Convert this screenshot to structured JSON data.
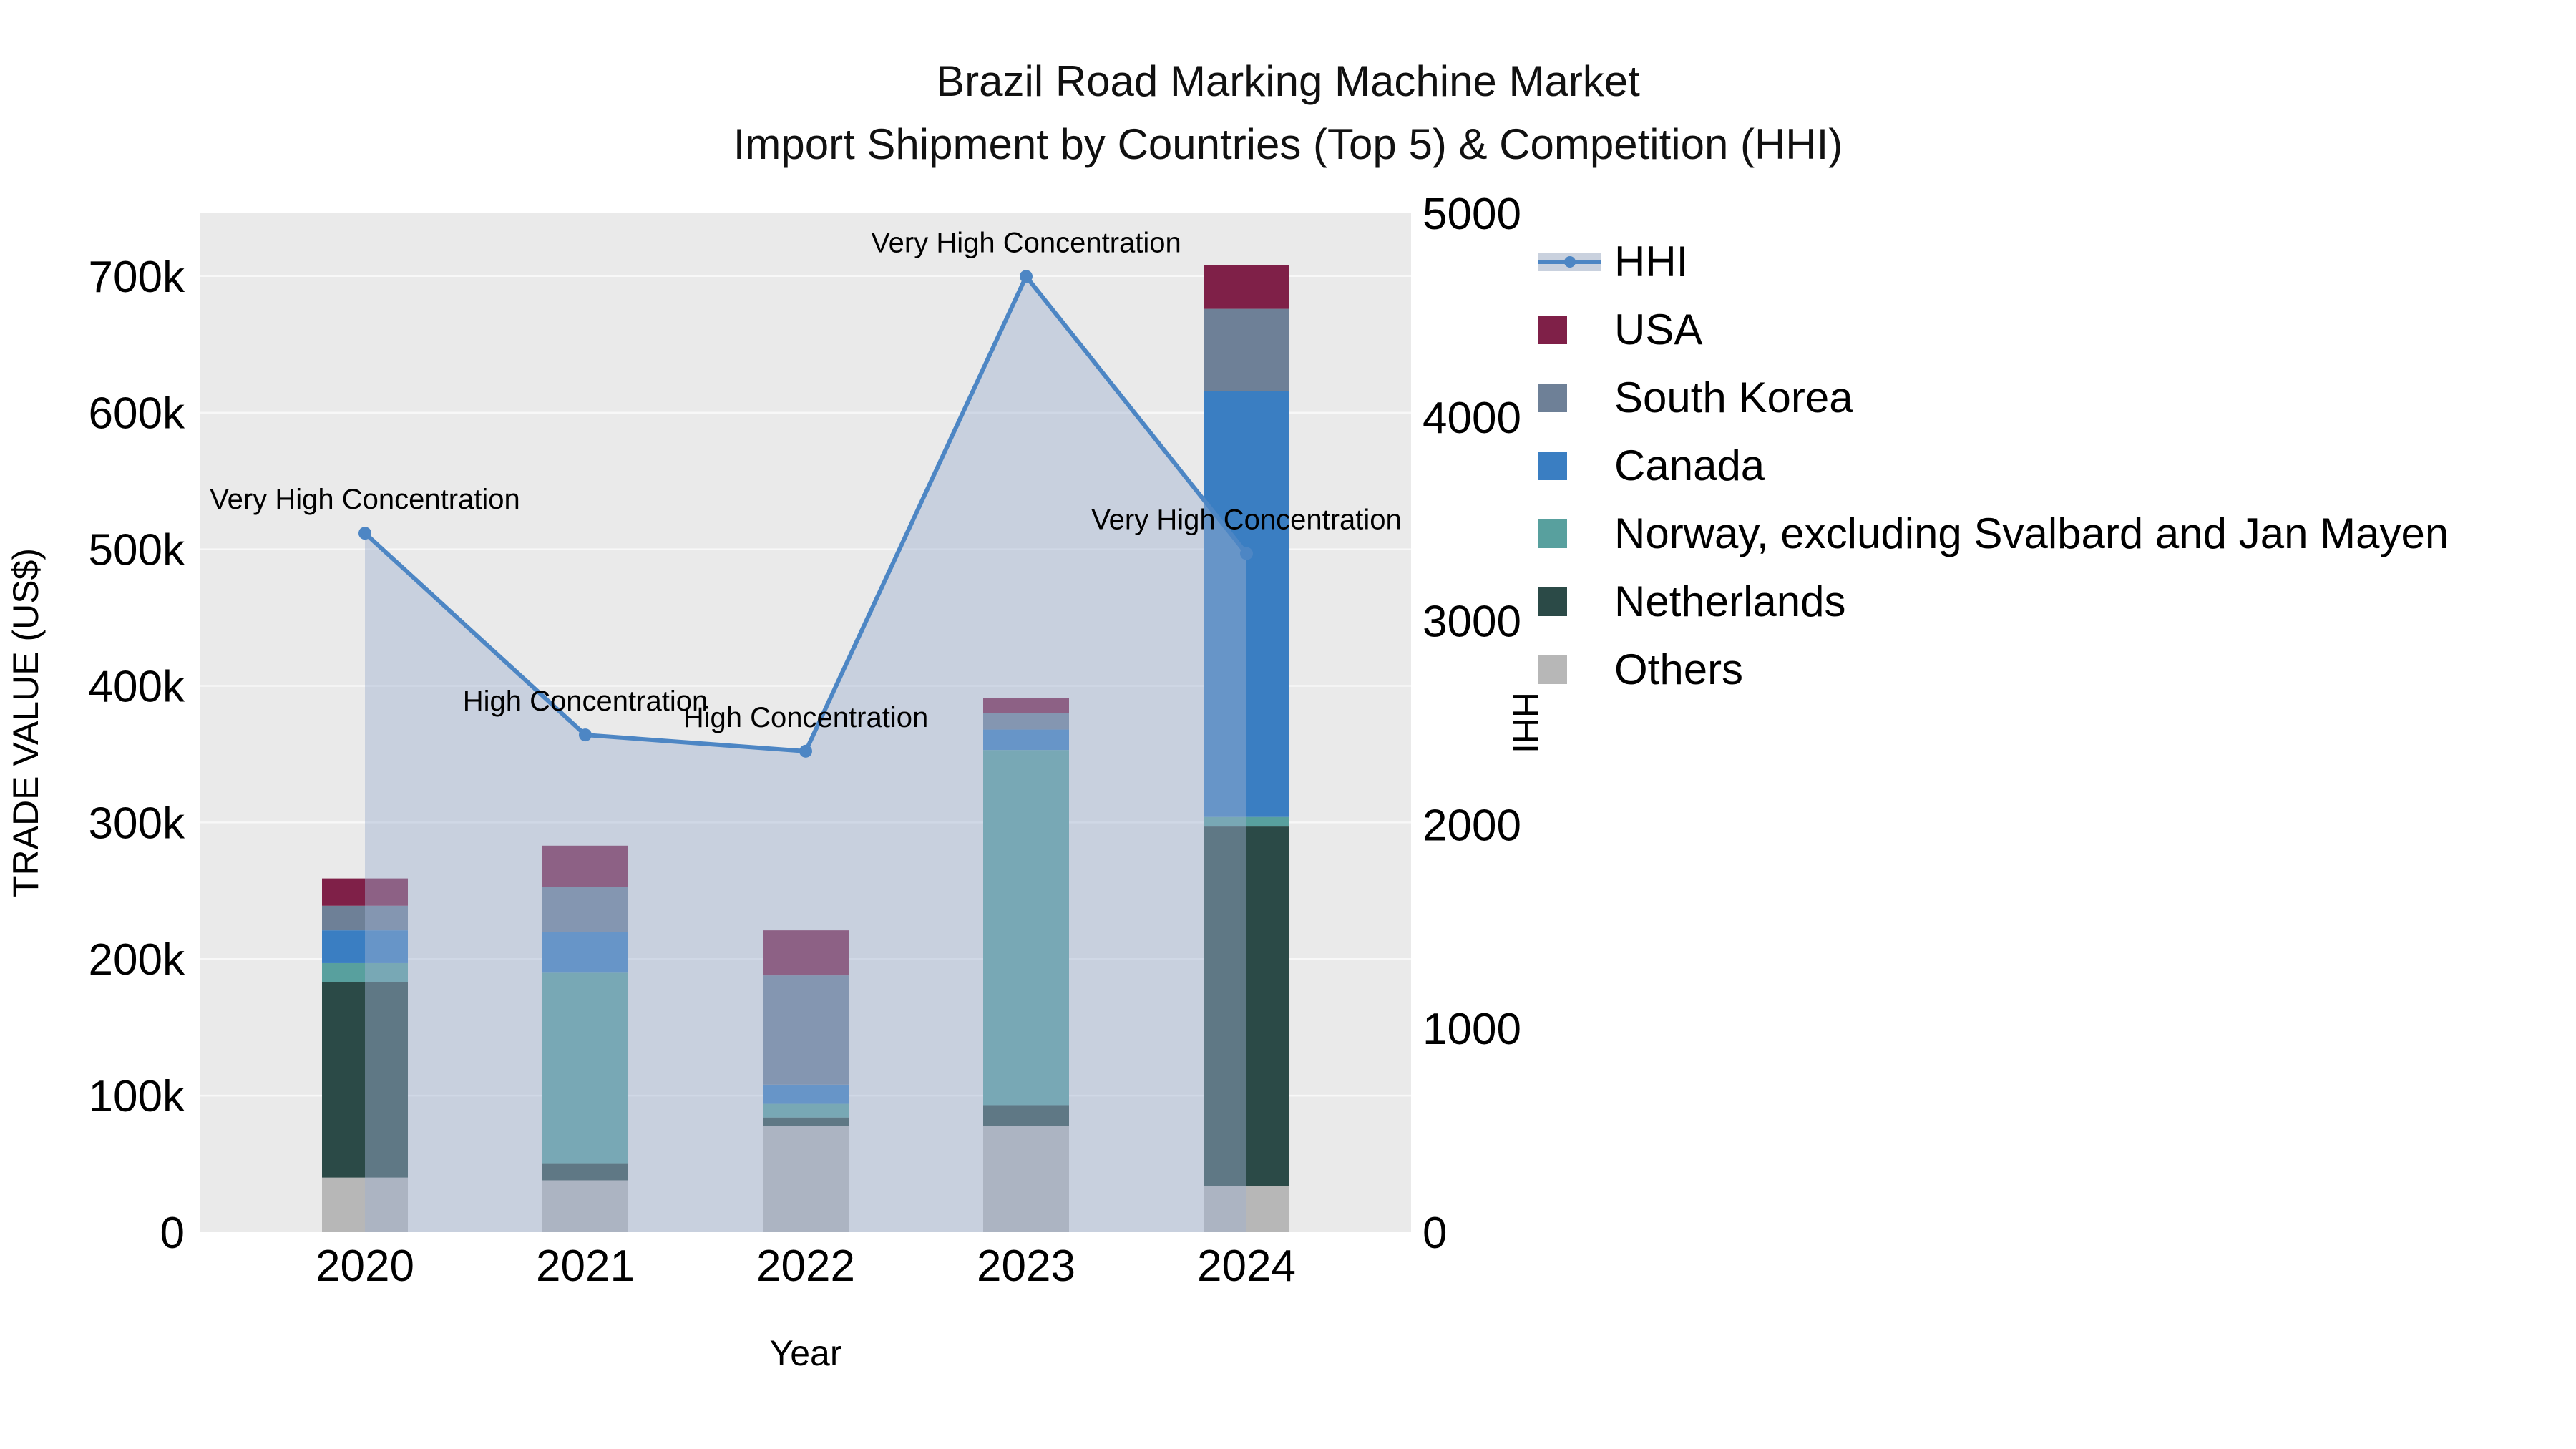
{
  "title": {
    "line1": "Brazil Road Marking Machine Market",
    "line2": "Import Shipment by Countries (Top 5) & Competition (HHI)"
  },
  "axes": {
    "x_title": "Year",
    "y_left_title": "TRADE VALUE (US$)",
    "y_right_title": "HHI"
  },
  "chart_data": {
    "type": "combo: stacked-bar + line-area",
    "title": "Brazil Road Marking Machine Market — Import Shipment by Countries (Top 5) & Competition (HHI)",
    "categories": [
      "2020",
      "2021",
      "2022",
      "2023",
      "2024"
    ],
    "xlabel": "Year",
    "ylabel_left": "TRADE VALUE (US$)",
    "ylabel_right": "HHI",
    "plot_bg": "#eaeaea",
    "grid_color": "#f8f8f8",
    "y_left_axis": {
      "min": 0,
      "max": 746000,
      "tick_values": [
        0,
        100000,
        200000,
        300000,
        400000,
        500000,
        600000,
        700000
      ],
      "tick_labels": [
        "0",
        "100k",
        "200k",
        "300k",
        "400k",
        "500k",
        "600k",
        "700k"
      ]
    },
    "y_right_axis": {
      "min": 0,
      "max": 5000,
      "tick_values": [
        0,
        1000,
        2000,
        3000,
        4000,
        5000
      ],
      "tick_labels": [
        "0",
        "1000",
        "2000",
        "3000",
        "4000",
        "5000"
      ]
    },
    "bar_series_bottom_to_top": [
      {
        "name": "Others",
        "color": "#b7b7b7",
        "values": [
          40000,
          38000,
          78000,
          78000,
          34000
        ]
      },
      {
        "name": "Netherlands",
        "color": "#2b4a47",
        "values": [
          143000,
          12000,
          6000,
          15000,
          263000
        ]
      },
      {
        "name": "Norway, excluding Svalbard and Jan Mayen",
        "color": "#58a09e",
        "values": [
          14000,
          140000,
          10000,
          260000,
          7000
        ]
      },
      {
        "name": "Canada",
        "color": "#3a7ec2",
        "values": [
          24000,
          30000,
          14000,
          15000,
          312000
        ]
      },
      {
        "name": "South Korea",
        "color": "#6e8097",
        "values": [
          18000,
          33000,
          80000,
          12000,
          60000
        ]
      },
      {
        "name": "USA",
        "color": "#7f2048",
        "values": [
          20000,
          30000,
          33000,
          11000,
          32000
        ]
      }
    ],
    "line_series": {
      "name": "HHI",
      "color": "#4d86c4",
      "area_fill": "rgba(160,178,208,0.45)",
      "values": [
        3430,
        2440,
        2360,
        4690,
        3330
      ]
    },
    "annotations": [
      {
        "category": "2020",
        "text": "Very High Concentration"
      },
      {
        "category": "2021",
        "text": "High Concentration"
      },
      {
        "category": "2022",
        "text": "High Concentration"
      },
      {
        "category": "2023",
        "text": "Very High Concentration"
      },
      {
        "category": "2024",
        "text": "Very High Concentration"
      }
    ]
  },
  "legend": {
    "items": [
      {
        "label": "HHI",
        "kind": "line",
        "color": "#4d86c4"
      },
      {
        "label": "USA",
        "kind": "box",
        "color": "#7f2048"
      },
      {
        "label": "South Korea",
        "kind": "box",
        "color": "#6e8097"
      },
      {
        "label": "Canada",
        "kind": "box",
        "color": "#3a7ec2"
      },
      {
        "label": "Norway, excluding Svalbard and Jan Mayen",
        "kind": "box",
        "color": "#58a09e"
      },
      {
        "label": "Netherlands",
        "kind": "box",
        "color": "#2b4a47"
      },
      {
        "label": "Others",
        "kind": "box",
        "color": "#b7b7b7"
      }
    ]
  }
}
